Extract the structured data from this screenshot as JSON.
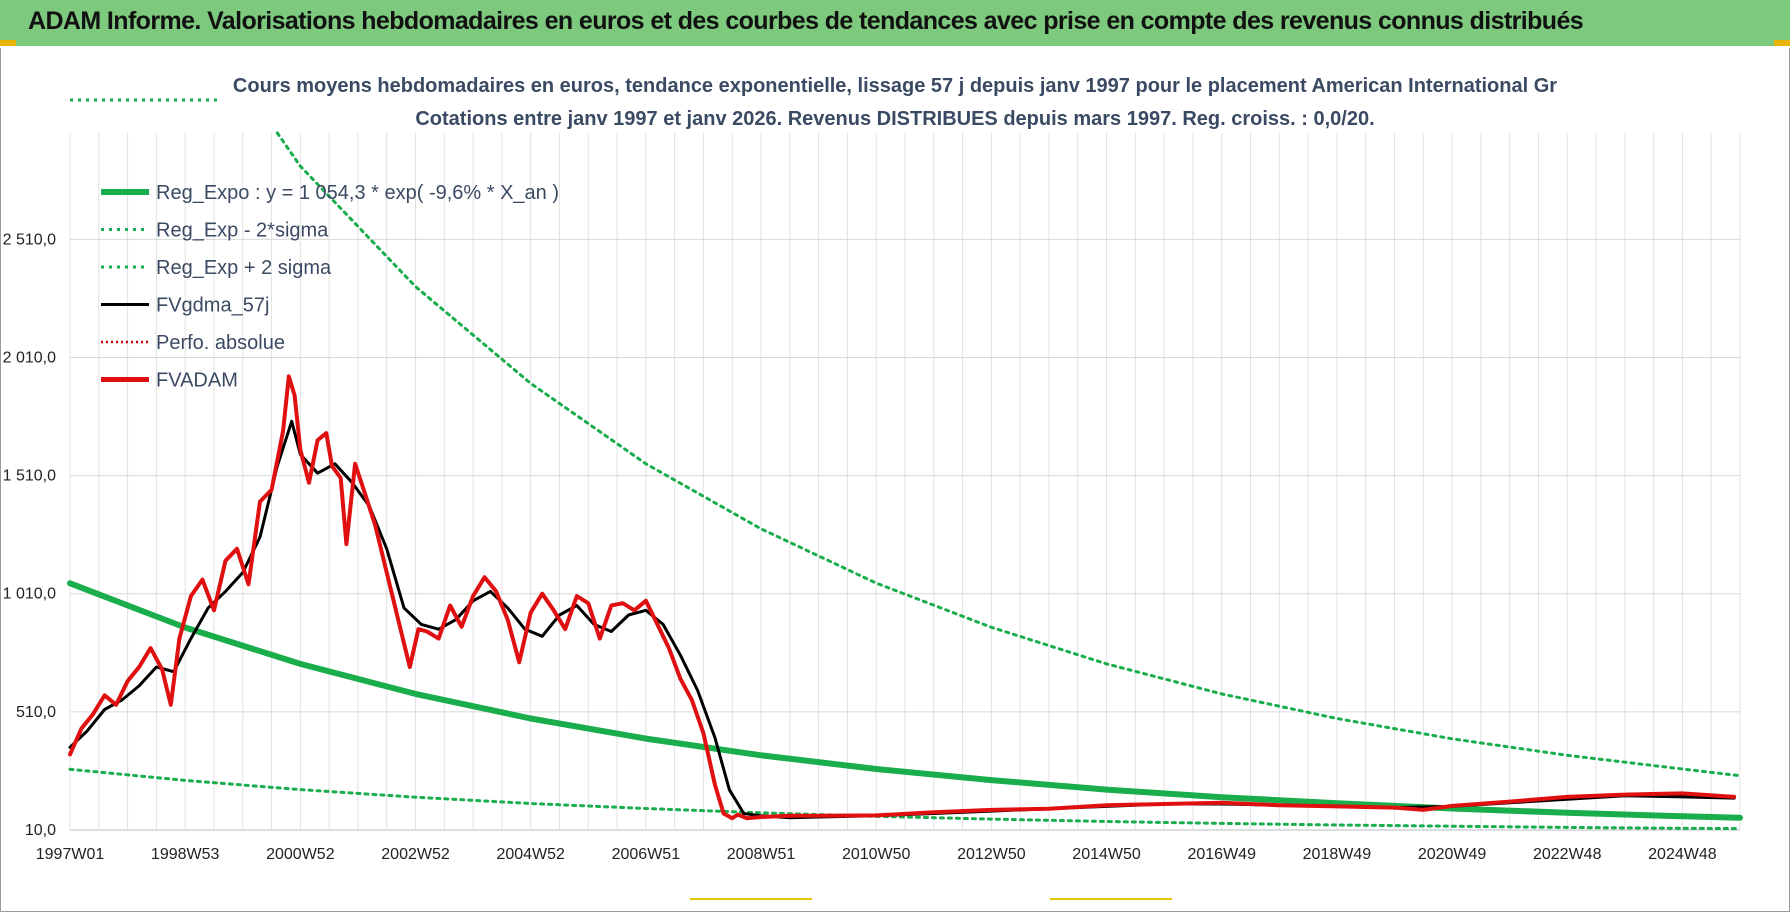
{
  "header": {
    "title": "ADAM Informe. Valorisations hebdomadaires en euros et des courbes de tendances avec prise en compte des revenus connus distribués"
  },
  "colors": {
    "header_bg": "#7dc97d",
    "reg_green": "#1aad4b",
    "fvgdma_black": "#000000",
    "fvadam_red": "#e01010",
    "perfo_red": "#cc0000",
    "title_text": "#3b4a63"
  },
  "chart_data": {
    "type": "line",
    "title_line1": "Cours moyens hebdomadaires en euros, tendance exponentielle, lissage 57 j depuis janv 1997  pour le placement American International Gr",
    "title_line2": "Cotations entre janv 1997 et janv 2026. Revenus DISTRIBUES depuis mars 1997.  Reg. croiss. : 0,0/20.",
    "xlabel": "",
    "ylabel": "",
    "x_tick_labels": [
      "1997W01",
      "1998W53",
      "2000W52",
      "2002W52",
      "2004W52",
      "2006W51",
      "2008W51",
      "2010W50",
      "2012W50",
      "2014W50",
      "2016W49",
      "2018W49",
      "2020W49",
      "2022W48",
      "2024W48"
    ],
    "x_tick_years": [
      1997.0,
      1999.0,
      2001.0,
      2003.0,
      2005.0,
      2007.0,
      2009.0,
      2011.0,
      2013.0,
      2015.0,
      2017.0,
      2019.0,
      2021.0,
      2023.0,
      2025.0
    ],
    "y_tick_labels": [
      "10,0",
      "510,0",
      "1 010,0",
      "1 510,0",
      "2 010,0",
      "2 510,0"
    ],
    "y_tick_values": [
      10,
      510,
      1010,
      1510,
      2010,
      2510
    ],
    "xlim": [
      1997.0,
      2026.0
    ],
    "ylim": [
      10,
      2960
    ],
    "grid": true,
    "legend_position": "top-left",
    "legend": [
      {
        "label": "Reg_Expo : y = 1 054,3 * exp( -9,6% *  X_an )",
        "style": "solid-green-thick"
      },
      {
        "label": "Reg_Exp - 2*sigma",
        "style": "dotted-green"
      },
      {
        "label": "Reg_Exp + 2 sigma",
        "style": "dotted-green"
      },
      {
        "label": "FVgdma_57j",
        "style": "solid-black"
      },
      {
        "label": "Perfo. absolue",
        "style": "dotted-red"
      },
      {
        "label": "FVADAM",
        "style": "solid-red-thick"
      }
    ],
    "series": [
      {
        "name": "Reg_Expo : y = 1 054,3 * exp( -9,6% *  X_an )",
        "x": [
          1997.0,
          1999.0,
          2001.0,
          2003.0,
          2005.0,
          2007.0,
          2009.0,
          2011.0,
          2013.0,
          2015.0,
          2017.0,
          2019.0,
          2021.0,
          2023.0,
          2025.0,
          2026.0
        ],
        "y": [
          1054,
          867,
          713,
          586,
          482,
          397,
          326,
          268,
          221,
          181,
          149,
          123,
          101,
          83,
          68,
          62
        ]
      },
      {
        "name": "Reg_Exp - 2*sigma",
        "x": [
          1997.0,
          1999.0,
          2001.0,
          2003.0,
          2005.0,
          2007.0,
          2009.0,
          2011.0,
          2013.0,
          2015.0,
          2017.0,
          2019.0,
          2021.0,
          2023.0,
          2025.0,
          2026.0
        ],
        "y": [
          267,
          220,
          181,
          149,
          122,
          101,
          83,
          68,
          56,
          46,
          38,
          31,
          26,
          21,
          17,
          16
        ]
      },
      {
        "name": "Reg_Exp + 2 sigma",
        "x": [
          2000.6,
          2001.0,
          2003.0,
          2005.0,
          2007.0,
          2009.0,
          2011.0,
          2013.0,
          2015.0,
          2017.0,
          2019.0,
          2021.0,
          2023.0,
          2025.0,
          2026.0
        ],
        "y": [
          2960,
          2820,
          2310,
          1900,
          1560,
          1285,
          1055,
          868,
          713,
          586,
          482,
          396,
          326,
          268,
          240
        ]
      },
      {
        "name": "FVgdma_57j",
        "x": [
          1997.0,
          1997.3,
          1997.6,
          1997.9,
          1998.2,
          1998.5,
          1998.8,
          1999.1,
          1999.4,
          1999.7,
          2000.0,
          2000.3,
          2000.6,
          2000.85,
          2001.0,
          2001.3,
          2001.6,
          2001.9,
          2002.2,
          2002.5,
          2002.8,
          2003.1,
          2003.4,
          2003.7,
          2004.0,
          2004.3,
          2004.6,
          2004.9,
          2005.2,
          2005.5,
          2005.8,
          2006.1,
          2006.4,
          2006.7,
          2007.0,
          2007.3,
          2007.6,
          2007.9,
          2008.2,
          2008.45,
          2008.7,
          2009.0,
          2009.5,
          2010.0,
          2011.0,
          2012.0,
          2013.0,
          2014.0,
          2015.0,
          2016.0,
          2017.0,
          2018.0,
          2019.0,
          2020.0,
          2021.0,
          2022.0,
          2023.0,
          2024.0,
          2025.0,
          2025.9
        ],
        "y": [
          360,
          430,
          520,
          560,
          620,
          700,
          680,
          820,
          950,
          1020,
          1100,
          1250,
          1550,
          1740,
          1600,
          1520,
          1560,
          1480,
          1380,
          1200,
          950,
          880,
          860,
          900,
          980,
          1020,
          950,
          860,
          830,
          920,
          960,
          880,
          850,
          920,
          940,
          880,
          750,
          600,
          400,
          180,
          80,
          70,
          62,
          65,
          70,
          80,
          90,
          100,
          110,
          120,
          120,
          115,
          110,
          105,
          110,
          125,
          140,
          155,
          150,
          145
        ]
      },
      {
        "name": "FVADAM",
        "x": [
          1997.0,
          1997.2,
          1997.4,
          1997.6,
          1997.8,
          1998.0,
          1998.2,
          1998.4,
          1998.6,
          1998.75,
          1998.9,
          1999.1,
          1999.3,
          1999.5,
          1999.7,
          1999.9,
          2000.1,
          2000.3,
          2000.5,
          2000.7,
          2000.8,
          2000.9,
          2001.0,
          2001.15,
          2001.3,
          2001.45,
          2001.55,
          2001.7,
          2001.8,
          2001.95,
          2002.1,
          2002.3,
          2002.5,
          2002.7,
          2002.9,
          2003.05,
          2003.2,
          2003.4,
          2003.6,
          2003.8,
          2004.0,
          2004.2,
          2004.4,
          2004.6,
          2004.8,
          2005.0,
          2005.2,
          2005.4,
          2005.6,
          2005.8,
          2006.0,
          2006.2,
          2006.4,
          2006.6,
          2006.8,
          2007.0,
          2007.2,
          2007.4,
          2007.6,
          2007.8,
          2008.0,
          2008.2,
          2008.35,
          2008.5,
          2008.6,
          2008.75,
          2009.0,
          2009.5,
          2010.0,
          2011.0,
          2012.0,
          2013.0,
          2014.0,
          2015.0,
          2016.0,
          2017.0,
          2018.0,
          2019.0,
          2020.0,
          2020.5,
          2021.0,
          2022.0,
          2023.0,
          2024.0,
          2025.0,
          2025.9
        ],
        "y": [
          330,
          440,
          500,
          580,
          540,
          640,
          700,
          780,
          690,
          540,
          820,
          1000,
          1070,
          940,
          1150,
          1200,
          1050,
          1400,
          1450,
          1700,
          1930,
          1850,
          1620,
          1480,
          1660,
          1690,
          1550,
          1500,
          1220,
          1560,
          1450,
          1300,
          1100,
          900,
          700,
          860,
          850,
          820,
          960,
          870,
          1000,
          1080,
          1020,
          900,
          720,
          930,
          1010,
          940,
          860,
          1000,
          970,
          820,
          960,
          970,
          940,
          980,
          880,
          780,
          650,
          560,
          420,
          200,
          80,
          60,
          75,
          60,
          65,
          70,
          70,
          72,
          85,
          95,
          100,
          115,
          120,
          125,
          115,
          110,
          105,
          95,
          112,
          130,
          150,
          160,
          165,
          150
        ]
      }
    ]
  }
}
